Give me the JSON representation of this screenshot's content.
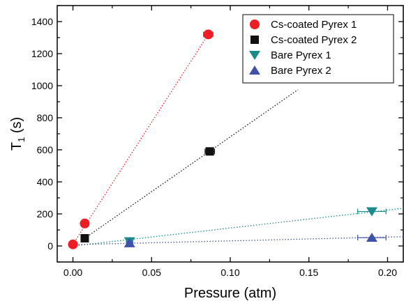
{
  "chart_data": {
    "type": "scatter",
    "title": "",
    "xlabel": "Pressure (atm)",
    "ylabel_main": "T",
    "ylabel_sub": "1",
    "ylabel_unit": " (s)",
    "xlim": [
      -0.01,
      0.21
    ],
    "ylim": [
      -100,
      1500
    ],
    "xticks": [
      0.0,
      0.05,
      0.1,
      0.15,
      0.2
    ],
    "xtick_labels": [
      "0.00",
      "0.05",
      "0.10",
      "0.15",
      "0.20"
    ],
    "yticks": [
      0,
      200,
      400,
      600,
      800,
      1000,
      1200,
      1400
    ],
    "ytick_labels": [
      "0",
      "200",
      "400",
      "600",
      "800",
      "1000",
      "1200",
      "1400"
    ],
    "grid": false,
    "legend_position": "top-right",
    "series": [
      {
        "name": "Cs-coated Pyrex 1",
        "marker": "circle",
        "color": "#ee1c24",
        "points": [
          {
            "x": 0.0,
            "y": 10
          },
          {
            "x": 0.0075,
            "y": 140
          },
          {
            "x": 0.086,
            "y": 1320,
            "xerr": 0.003
          }
        ],
        "fit": {
          "x0": 0.0,
          "y0": 10,
          "x1": 0.086,
          "y1": 1320
        }
      },
      {
        "name": "Cs-coated Pyrex 2",
        "marker": "square",
        "color": "#111111",
        "points": [
          {
            "x": 0.0075,
            "y": 48
          },
          {
            "x": 0.087,
            "y": 590,
            "xerr": 0.003
          }
        ],
        "fit": {
          "x0": 0.0075,
          "y0": 48,
          "x1": 0.143,
          "y1": 975
        }
      },
      {
        "name": "Bare Pyrex 1",
        "marker": "triangle-down",
        "color": "#1a8a8a",
        "points": [
          {
            "x": 0.036,
            "y": 28,
            "xerr": 0.002
          },
          {
            "x": 0.19,
            "y": 215,
            "xerr": 0.009
          }
        ],
        "fit": {
          "x0": 0.0,
          "y0": 0,
          "x1": 0.21,
          "y1": 235
        }
      },
      {
        "name": "Bare Pyrex 2",
        "marker": "triangle-up",
        "color": "#3f51a8",
        "points": [
          {
            "x": 0.036,
            "y": 18,
            "xerr": 0.002
          },
          {
            "x": 0.19,
            "y": 52,
            "xerr": 0.009
          }
        ],
        "fit": {
          "x0": 0.0,
          "y0": 8,
          "x1": 0.21,
          "y1": 58
        }
      }
    ]
  }
}
